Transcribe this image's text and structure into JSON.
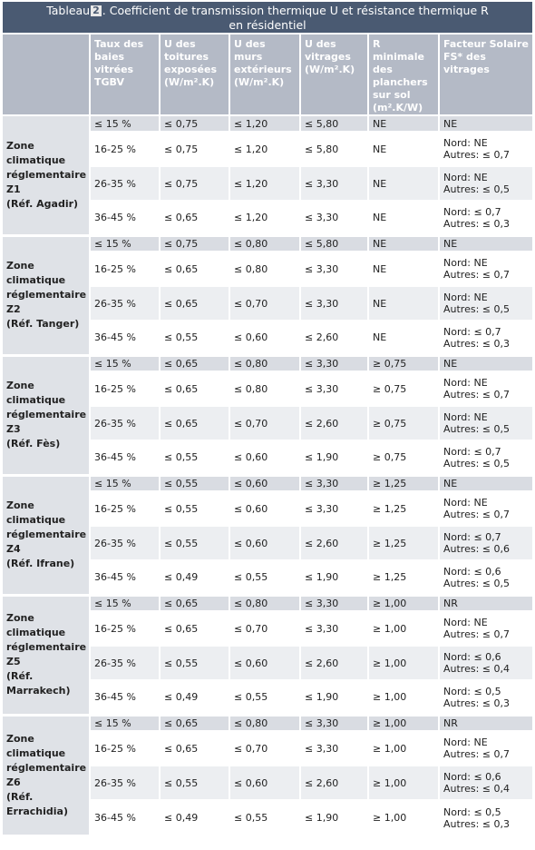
{
  "title": {
    "prefix": "Tableau",
    "number": "2",
    "line1_rest": ". Coefficient de transmission thermique U et résistance thermique R",
    "line2": "en résidentiel"
  },
  "headers": [
    "Taux des baies vitrées TGBV",
    "U des toitures exposées (W/m².K)",
    "U des murs extérieurs (W/m².K)",
    "U des vitrages (W/m².K)",
    "R minimale des planchers sur sol (m².K/W)",
    "Facteur Solaire FS* des vitrages"
  ],
  "zones": [
    {
      "label": [
        "Zone",
        "climatique",
        "réglementaire",
        "Z1",
        "(Réf. Agadir)"
      ],
      "rows": [
        {
          "tgbv": "≤ 15 %",
          "u_toit": "≤ 0,75",
          "u_murs": "≤ 1,20",
          "u_vitr": "≤ 5,80",
          "r_min": "NE",
          "fs": [
            "NE"
          ]
        },
        {
          "tgbv": "16-25 %",
          "u_toit": "≤ 0,75",
          "u_murs": "≤ 1,20",
          "u_vitr": "≤ 5,80",
          "r_min": "NE",
          "fs": [
            "Nord: NE",
            "Autres: ≤ 0,7"
          ]
        },
        {
          "tgbv": "26-35 %",
          "u_toit": "≤ 0,75",
          "u_murs": "≤ 1,20",
          "u_vitr": "≤ 3,30",
          "r_min": "NE",
          "fs": [
            "Nord: NE",
            "Autres: ≤ 0,5"
          ]
        },
        {
          "tgbv": "36-45 %",
          "u_toit": "≤ 0,65",
          "u_murs": "≤ 1,20",
          "u_vitr": "≤ 3,30",
          "r_min": "NE",
          "fs": [
            "Nord: ≤ 0,7",
            "Autres: ≤ 0,3"
          ]
        }
      ]
    },
    {
      "label": [
        "Zone",
        "climatique",
        "réglementaire",
        "Z2",
        "(Réf. Tanger)"
      ],
      "rows": [
        {
          "tgbv": "≤ 15 %",
          "u_toit": "≤ 0,75",
          "u_murs": "≤ 0,80",
          "u_vitr": "≤ 5,80",
          "r_min": "NE",
          "fs": [
            "NE"
          ]
        },
        {
          "tgbv": "16-25 %",
          "u_toit": "≤ 0,65",
          "u_murs": "≤ 0,80",
          "u_vitr": "≤ 3,30",
          "r_min": "NE",
          "fs": [
            "Nord: NE",
            "Autres: ≤ 0,7"
          ]
        },
        {
          "tgbv": "26-35 %",
          "u_toit": "≤ 0,65",
          "u_murs": "≤ 0,70",
          "u_vitr": "≤ 3,30",
          "r_min": "NE",
          "fs": [
            "Nord: NE",
            "Autres: ≤ 0,5"
          ]
        },
        {
          "tgbv": "36-45 %",
          "u_toit": "≤ 0,55",
          "u_murs": "≤ 0,60",
          "u_vitr": "≤ 2,60",
          "r_min": "NE",
          "fs": [
            "Nord: ≤ 0,7",
            "Autres: ≤ 0,3"
          ]
        }
      ]
    },
    {
      "label": [
        "Zone",
        "climatique",
        "réglementaire",
        "Z3",
        "(Réf. Fès)"
      ],
      "rows": [
        {
          "tgbv": "≤ 15 %",
          "u_toit": "≤ 0,65",
          "u_murs": "≤ 0,80",
          "u_vitr": "≤ 3,30",
          "r_min": "≥ 0,75",
          "fs": [
            "NE"
          ]
        },
        {
          "tgbv": "16-25 %",
          "u_toit": "≤ 0,65",
          "u_murs": "≤ 0,80",
          "u_vitr": "≤ 3,30",
          "r_min": "≥ 0,75",
          "fs": [
            "Nord: NE",
            "Autres: ≤ 0,7"
          ]
        },
        {
          "tgbv": "26-35 %",
          "u_toit": "≤ 0,65",
          "u_murs": "≤ 0,70",
          "u_vitr": "≤ 2,60",
          "r_min": "≥ 0,75",
          "fs": [
            "Nord: NE",
            "Autres: ≤ 0,5"
          ]
        },
        {
          "tgbv": "36-45 %",
          "u_toit": "≤ 0,55",
          "u_murs": "≤ 0,60",
          "u_vitr": "≤ 1,90",
          "r_min": "≥ 0,75",
          "fs": [
            "Nord: ≤ 0,7",
            "Autres: ≤ 0,5"
          ]
        }
      ]
    },
    {
      "label": [
        "Zone",
        "climatique",
        "réglementaire",
        "Z4",
        "(Réf. Ifrane)"
      ],
      "rows": [
        {
          "tgbv": "≤ 15 %",
          "u_toit": "≤ 0,55",
          "u_murs": "≤ 0,60",
          "u_vitr": "≤ 3,30",
          "r_min": "≥ 1,25",
          "fs": [
            "NE"
          ]
        },
        {
          "tgbv": "16-25 %",
          "u_toit": "≤ 0,55",
          "u_murs": "≤ 0,60",
          "u_vitr": "≤ 3,30",
          "r_min": "≥ 1,25",
          "fs": [
            "Nord: NE",
            "Autres: ≤ 0,7"
          ]
        },
        {
          "tgbv": "26-35 %",
          "u_toit": "≤ 0,55",
          "u_murs": "≤ 0,60",
          "u_vitr": "≤ 2,60",
          "r_min": "≥ 1,25",
          "fs": [
            "Nord: ≤ 0,7",
            "Autres: ≤ 0,6"
          ]
        },
        {
          "tgbv": "36-45 %",
          "u_toit": "≤ 0,49",
          "u_murs": "≤ 0,55",
          "u_vitr": "≤ 1,90",
          "r_min": "≥ 1,25",
          "fs": [
            "Nord: ≤ 0,6",
            "Autres: ≤ 0,5"
          ]
        }
      ]
    },
    {
      "label": [
        "Zone",
        "climatique",
        "réglementaire",
        "Z5",
        "(Réf.",
        "Marrakech)"
      ],
      "rows": [
        {
          "tgbv": "≤ 15 %",
          "u_toit": "≤ 0,65",
          "u_murs": "≤ 0,80",
          "u_vitr": "≤ 3,30",
          "r_min": "≥ 1,00",
          "fs": [
            "NR"
          ]
        },
        {
          "tgbv": "16-25 %",
          "u_toit": "≤ 0,65",
          "u_murs": "≤ 0,70",
          "u_vitr": "≤ 3,30",
          "r_min": "≥ 1,00",
          "fs": [
            "Nord: NE",
            "Autres: ≤ 0,7"
          ]
        },
        {
          "tgbv": "26-35 %",
          "u_toit": "≤ 0,55",
          "u_murs": "≤ 0,60",
          "u_vitr": "≤ 2,60",
          "r_min": "≥ 1,00",
          "fs": [
            "Nord: ≤ 0,6",
            "Autres: ≤ 0,4"
          ]
        },
        {
          "tgbv": "36-45 %",
          "u_toit": "≤ 0,49",
          "u_murs": "≤ 0,55",
          "u_vitr": "≤ 1,90",
          "r_min": "≥ 1,00",
          "fs": [
            "Nord: ≤ 0,5",
            "Autres: ≤ 0,3"
          ]
        }
      ]
    },
    {
      "label": [
        "Zone",
        "climatique",
        "réglementaire",
        "Z6",
        "(Réf.",
        "Errachidia)"
      ],
      "rows": [
        {
          "tgbv": "≤ 15 %",
          "u_toit": "≤ 0,65",
          "u_murs": "≤ 0,80",
          "u_vitr": "≤ 3,30",
          "r_min": "≥ 1,00",
          "fs": [
            "NR"
          ]
        },
        {
          "tgbv": "16-25 %",
          "u_toit": "≤ 0,65",
          "u_murs": "≤ 0,70",
          "u_vitr": "≤ 3,30",
          "r_min": "≥ 1,00",
          "fs": [
            "Nord: NE",
            "Autres: ≤ 0,7"
          ]
        },
        {
          "tgbv": "26-35 %",
          "u_toit": "≤ 0,55",
          "u_murs": "≤ 0,60",
          "u_vitr": "≤ 2,60",
          "r_min": "≥ 1,00",
          "fs": [
            "Nord: ≤ 0,6",
            "Autres: ≤ 0,4"
          ]
        },
        {
          "tgbv": "36-45 %",
          "u_toit": "≤ 0,49",
          "u_murs": "≤ 0,55",
          "u_vitr": "≤ 1,90",
          "r_min": "≥ 1,00",
          "fs": [
            "Nord: ≤ 0,5",
            "Autres: ≤ 0,3"
          ]
        }
      ]
    }
  ]
}
